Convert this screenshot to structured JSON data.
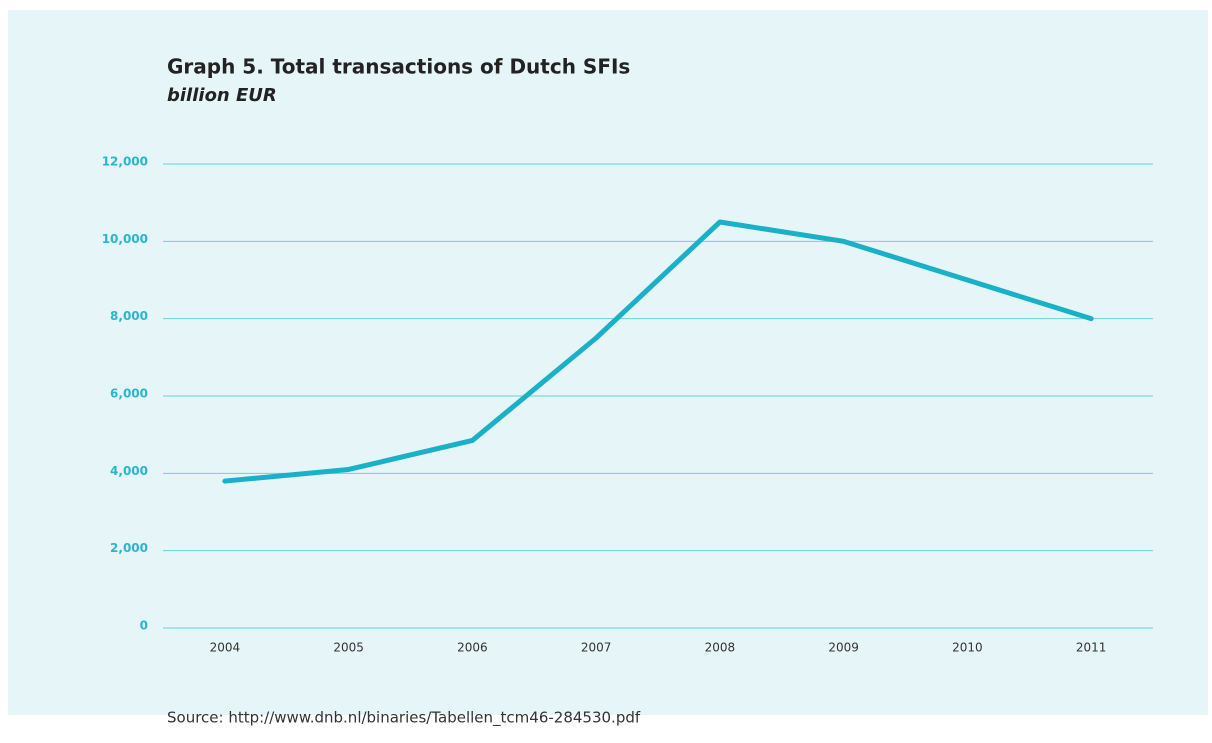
{
  "chart_data": {
    "type": "line",
    "title": "Graph 5. Total transactions of Dutch SFIs",
    "subtitle": "billion EUR",
    "source": "Source: http://www.dnb.nl/binaries/Tabellen_tcm46-284530.pdf",
    "categories": [
      "2004",
      "2005",
      "2006",
      "2007",
      "2008",
      "2009",
      "2010",
      "2011"
    ],
    "series": [
      {
        "name": "Total transactions",
        "color": "#1ab0c8",
        "values": [
          3800,
          4100,
          4850,
          7500,
          10500,
          10000,
          9000,
          8000
        ]
      }
    ],
    "ylim": [
      0,
      12000
    ],
    "yticks": [
      0,
      {
        "value": 2000,
        "label": "2,000"
      },
      {
        "value": 4000,
        "label": "4,000"
      },
      {
        "value": 6000,
        "label": "6,000"
      },
      {
        "value": 8000,
        "label": "8,000"
      },
      {
        "value": 10000,
        "label": "10,000"
      },
      {
        "value": 12000,
        "label": "12,000"
      }
    ],
    "grid": true
  }
}
